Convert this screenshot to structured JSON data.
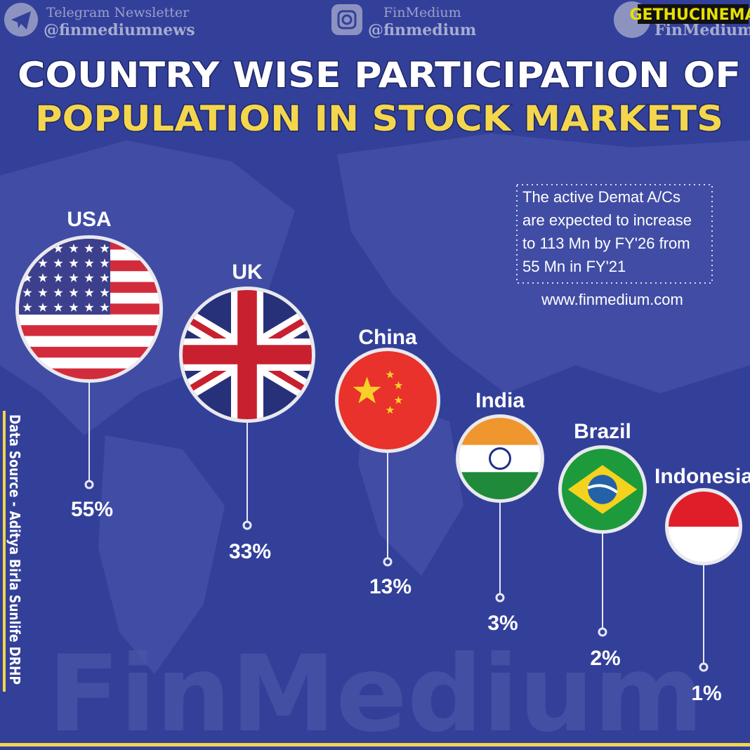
{
  "header": [
    {
      "title": "Telegram Newsletter",
      "handle": "@finmediumnews"
    },
    {
      "title": "FinMedium",
      "handle": "@finmedium"
    },
    {
      "title": "FinMedium"
    }
  ],
  "badge": "GETHUCINEMA",
  "title": [
    "COUNTRY WISE PARTICIPATION OF",
    "POPULATION IN STOCK MARKETS"
  ],
  "countries": [
    {
      "name": "USA",
      "share": "55%"
    },
    {
      "name": "UK",
      "share": "33%"
    },
    {
      "name": "China",
      "share": "13%"
    },
    {
      "name": "India",
      "share": "3%"
    },
    {
      "name": "Brazil",
      "share": "2%"
    },
    {
      "name": "Indonesia",
      "share": "1%"
    }
  ],
  "note": [
    "The active Demat A/Cs",
    "are expected to increase",
    "to 113 Mn by FY'26 from",
    "55 Mn in FY'21"
  ],
  "website": "www.finmedium.com",
  "source": "Data Source - Aditya Birla Sunlife DRHP",
  "watermark": "FinMedium"
}
